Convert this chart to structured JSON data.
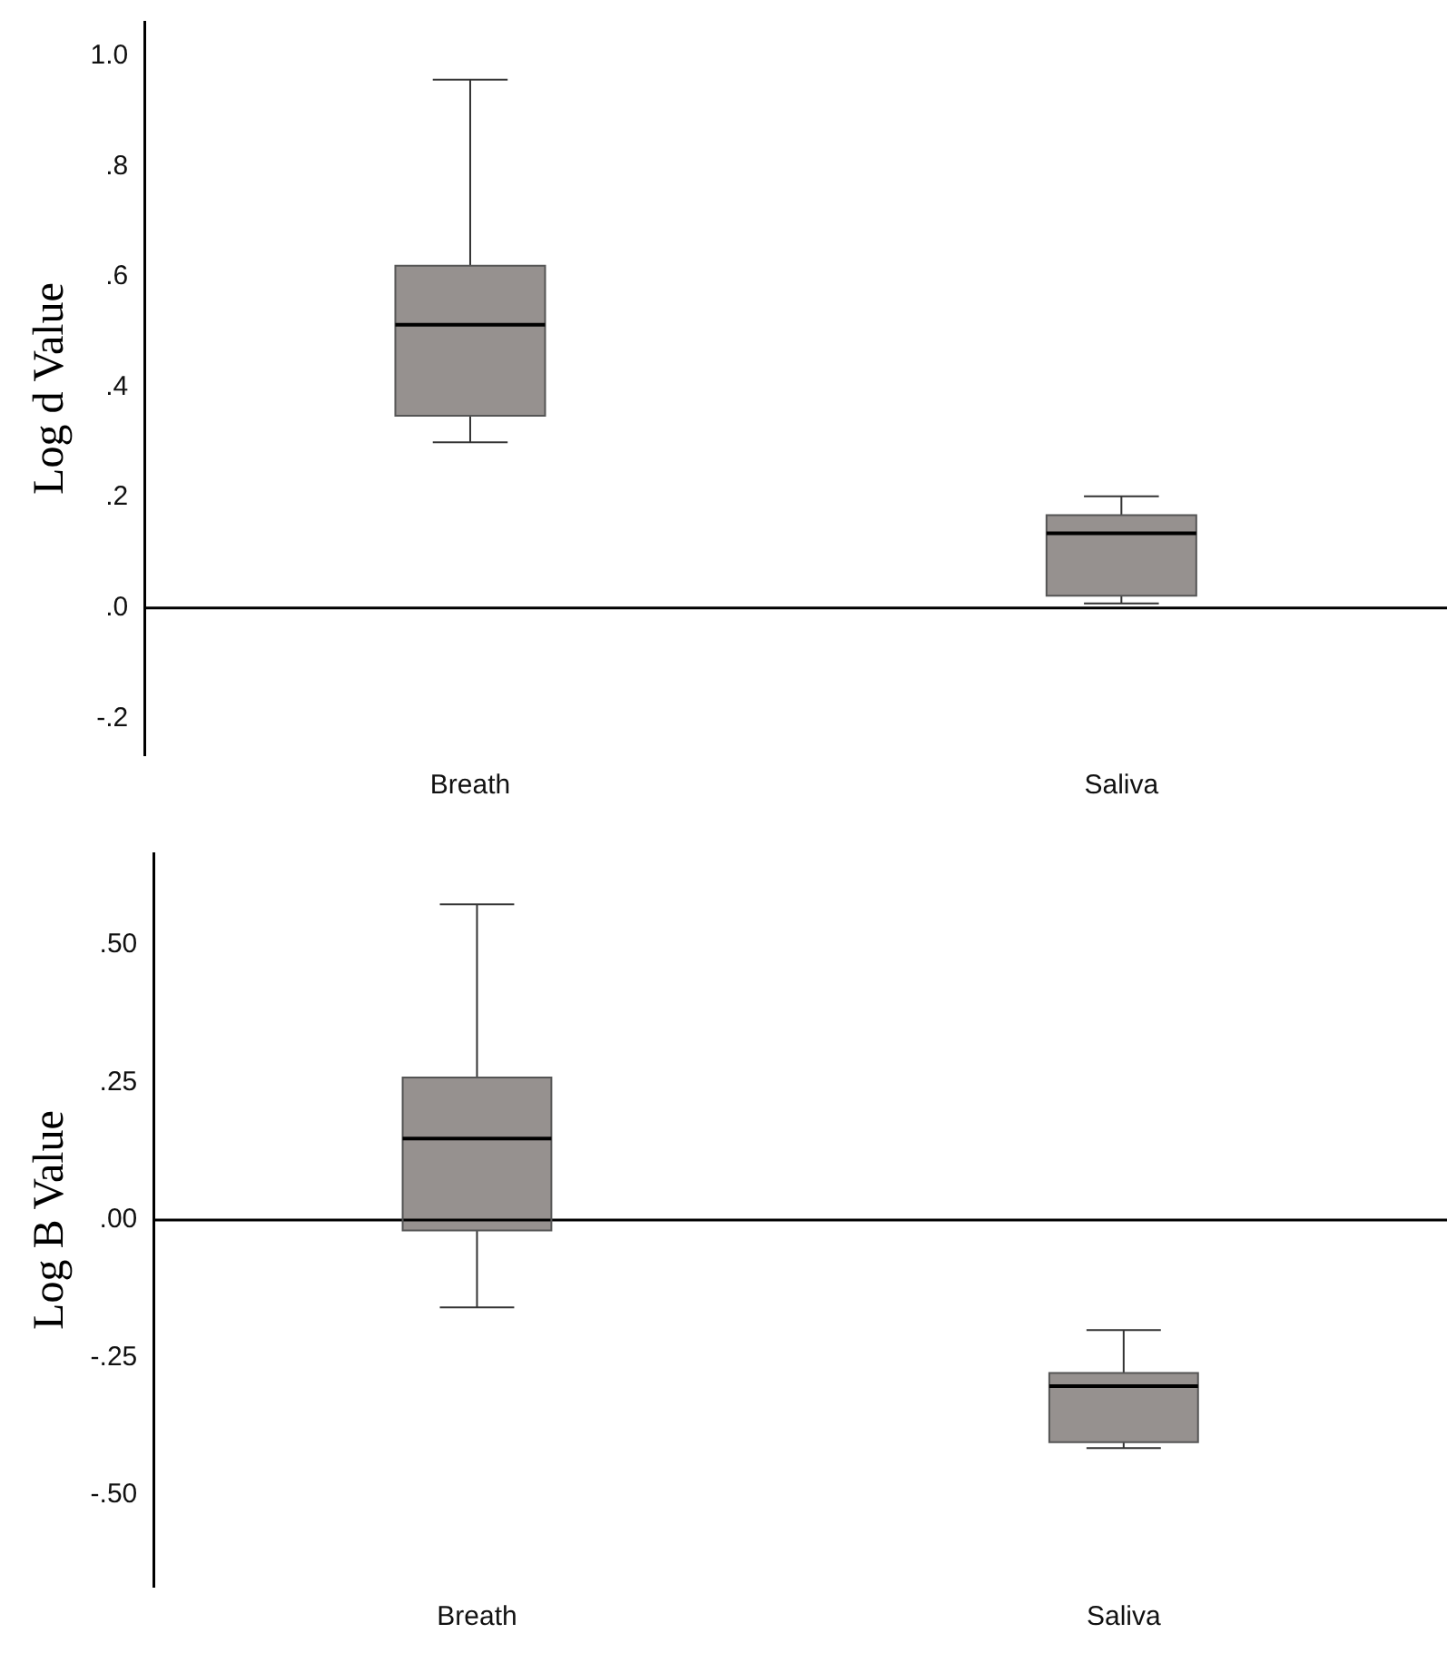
{
  "chart_data": [
    {
      "type": "box",
      "ylabel": "Log d Value",
      "categories": [
        "Breath",
        "Saliva"
      ],
      "ylim": [
        -0.267,
        1.062
      ],
      "yticks": [
        {
          "value": -0.2,
          "label": "-.2"
        },
        {
          "value": 0,
          "label": ".0"
        },
        {
          "value": 0.2,
          "label": ".2"
        },
        {
          "value": 0.4,
          "label": ".4"
        },
        {
          "value": 0.6,
          "label": ".6"
        },
        {
          "value": 0.8,
          "label": ".8"
        },
        {
          "value": 1,
          "label": "1.0"
        }
      ],
      "grid": false,
      "ref_lines": [
        {
          "axis": "y",
          "value": 0
        }
      ],
      "series": [
        {
          "color": "#96918f",
          "boxes": [
            {
              "low": 0.3,
              "q1": 0.348,
              "median": 0.513,
              "q3": 0.62,
              "high": 0.957
            },
            {
              "low": 0.008,
              "q1": 0.022,
              "median": 0.135,
              "q3": 0.168,
              "high": 0.202
            }
          ]
        }
      ]
    },
    {
      "type": "box",
      "ylabel": "Log B Value",
      "categories": [
        "Breath",
        "Saliva"
      ],
      "ylim": [
        -0.667,
        0.667
      ],
      "yticks": [
        {
          "value": -0.5,
          "label": "-.50"
        },
        {
          "value": -0.25,
          "label": "-.25"
        },
        {
          "value": 0,
          "label": ".00"
        },
        {
          "value": 0.25,
          "label": ".25"
        },
        {
          "value": 0.5,
          "label": ".50"
        }
      ],
      "grid": false,
      "ref_lines": [
        {
          "axis": "y",
          "value": 0
        }
      ],
      "series": [
        {
          "color": "#96918f",
          "boxes": [
            {
              "low": -0.159,
              "q1": -0.019,
              "median": 0.148,
              "q3": 0.259,
              "high": 0.574
            },
            {
              "low": -0.415,
              "q1": -0.404,
              "median": -0.302,
              "q3": -0.278,
              "high": -0.2
            }
          ]
        }
      ]
    }
  ]
}
